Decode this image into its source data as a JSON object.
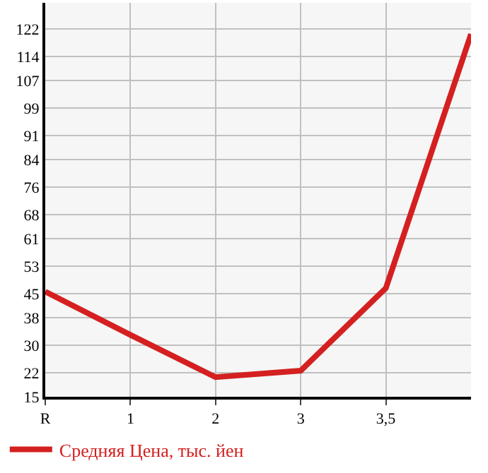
{
  "chart_data": {
    "type": "line",
    "categories": [
      "R",
      "1",
      "2",
      "3",
      "3,5",
      null
    ],
    "series": [
      {
        "name": "Средняя Цена, тыс. йен",
        "color": "#d42020",
        "values": [
          45.6,
          33,
          20.7,
          22.6,
          46.6,
          120.5
        ]
      }
    ],
    "ylim": [
      15,
      129.6
    ],
    "yticks": [
      15,
      22,
      30,
      38,
      45,
      53,
      61,
      68,
      76,
      84,
      91,
      99,
      107,
      114,
      122
    ],
    "grid": true,
    "legend": "bottom left",
    "marker": "none",
    "line_style": "solid"
  }
}
